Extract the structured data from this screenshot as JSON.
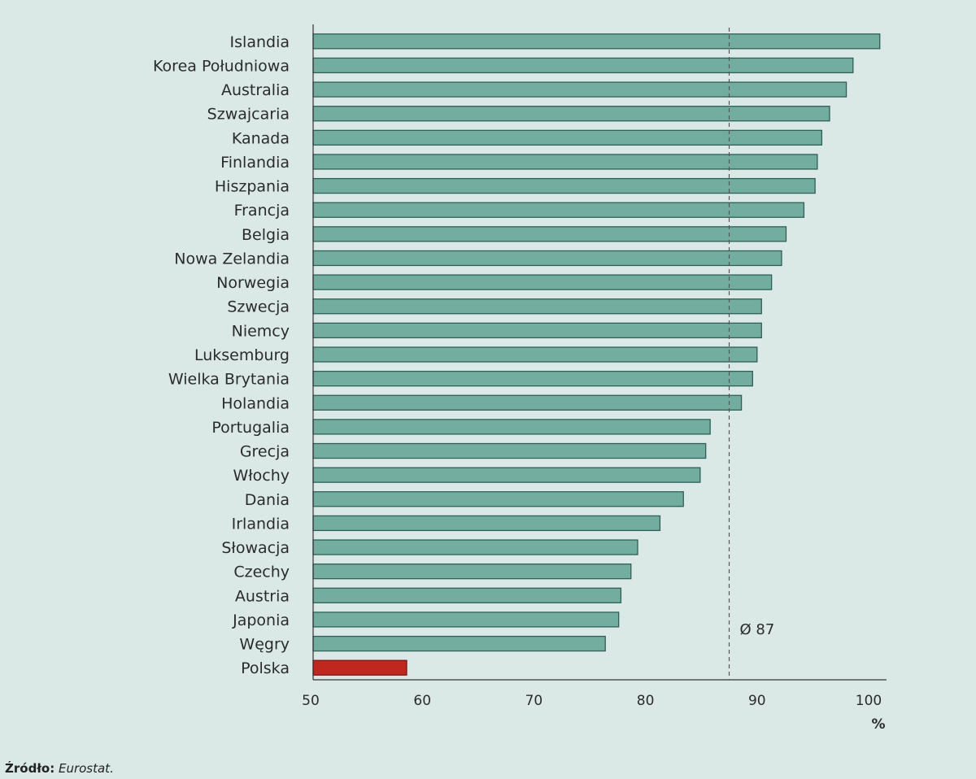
{
  "chart_data": {
    "type": "bar",
    "orientation": "horizontal",
    "categories": [
      "Islandia",
      "Korea Południowa",
      "Australia",
      "Szwajcaria",
      "Kanada",
      "Finlandia",
      "Hiszpania",
      "Francja",
      "Belgia",
      "Nowa Zelandia",
      "Norwegia",
      "Szwecja",
      "Niemcy",
      "Luksemburg",
      "Wielka Brytania",
      "Holandia",
      "Portugalia",
      "Grecja",
      "Włochy",
      "Dania",
      "Irlandia",
      "Słowacja",
      "Czechy",
      "Austria",
      "Japonia",
      "Węgry",
      "Polska"
    ],
    "values": [
      101,
      98.6,
      98,
      96.5,
      95.8,
      95.4,
      95.2,
      94.2,
      92.6,
      92.2,
      91.3,
      90.4,
      90.4,
      90,
      89.6,
      88.6,
      85.8,
      85.4,
      84.9,
      83.4,
      81.3,
      79.3,
      78.7,
      77.8,
      77.6,
      76.4,
      58.6
    ],
    "highlight": "Polska",
    "colors": {
      "bar": "#72ad9f",
      "bar_stroke": "#2f5f58",
      "highlight": "#c0281f",
      "highlight_stroke": "#7a1712",
      "highlight_text": "#c0281f"
    },
    "xlim": [
      50,
      101.5
    ],
    "xticks": [
      50,
      60,
      70,
      80,
      90,
      100
    ],
    "xlabel": "%",
    "reference_line": {
      "value": 87.5,
      "label": "Ø 87"
    }
  },
  "source": {
    "label": "Źródło:",
    "value": "Eurostat."
  }
}
